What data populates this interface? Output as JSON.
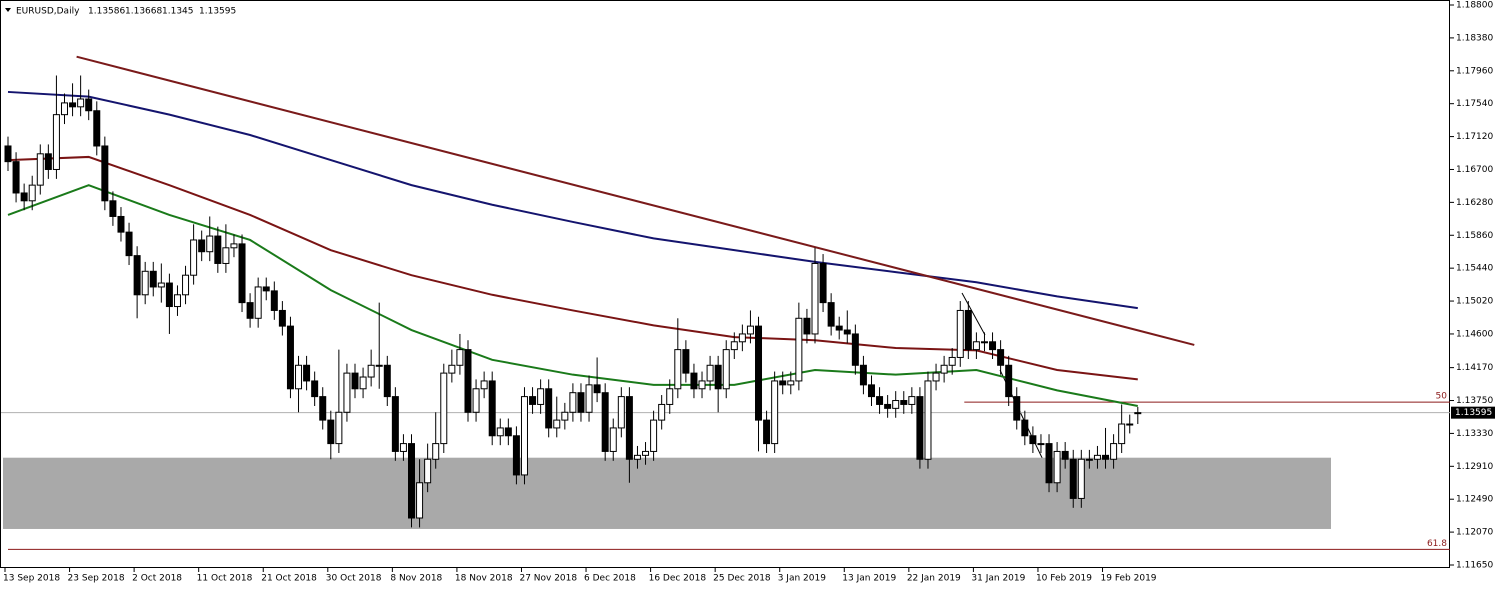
{
  "chart_data": {
    "type": "candlestick",
    "title": "EURUSD,Daily",
    "categories": [
      "13 Sep 2018",
      null,
      null,
      null,
      null,
      null,
      null,
      null,
      "23 Sep 2018",
      null,
      null,
      null,
      null,
      null,
      null,
      null,
      "2 Oct 2018",
      null,
      null,
      null,
      null,
      null,
      null,
      null,
      "11 Oct 2018",
      null,
      null,
      null,
      null,
      null,
      null,
      null,
      "21 Oct 2018",
      null,
      null,
      null,
      null,
      null,
      null,
      null,
      "30 Oct 2018",
      null,
      null,
      null,
      null,
      null,
      null,
      null,
      "8 Nov 2018",
      null,
      null,
      null,
      null,
      null,
      null,
      null,
      "18 Nov 2018",
      null,
      null,
      null,
      null,
      null,
      null,
      null,
      "27 Nov 2018",
      null,
      null,
      null,
      null,
      null,
      null,
      null,
      "6 Dec 2018",
      null,
      null,
      null,
      null,
      null,
      null,
      null,
      "16 Dec 2018",
      null,
      null,
      null,
      null,
      null,
      null,
      null,
      "25 Dec 2018",
      null,
      null,
      null,
      null,
      null,
      null,
      null,
      "3 Jan 2019",
      null,
      null,
      null,
      null,
      null,
      null,
      null,
      "13 Jan 2019",
      null,
      null,
      null,
      null,
      null,
      null,
      null,
      "22 Jan 2019",
      null,
      null,
      null,
      null,
      null,
      null,
      null,
      "31 Jan 2019",
      null,
      null,
      null,
      null,
      null,
      null,
      null,
      "10 Feb 2019",
      null,
      null,
      null,
      null,
      null,
      null,
      null,
      "19 Feb 2019",
      null,
      null,
      null,
      null
    ],
    "open": [
      1.17,
      1.168,
      1.164,
      1.163,
      1.165,
      1.169,
      1.167,
      1.174,
      1.1755,
      1.175,
      1.176,
      1.1745,
      1.17,
      1.163,
      1.161,
      1.159,
      1.156,
      1.151,
      1.154,
      1.152,
      1.1525,
      1.1495,
      1.151,
      1.1535,
      1.158,
      1.1565,
      1.1585,
      1.155,
      1.157,
      1.1575,
      1.15,
      1.148,
      1.152,
      1.1515,
      1.149,
      1.147,
      1.139,
      1.142,
      1.14,
      1.138,
      1.135,
      1.132,
      1.136,
      1.141,
      1.139,
      1.1405,
      1.142,
      1.142,
      1.138,
      1.131,
      1.132,
      1.1225,
      1.127,
      1.13,
      1.132,
      1.141,
      1.142,
      1.144,
      1.136,
      1.139,
      1.14,
      1.133,
      1.134,
      1.133,
      1.128,
      1.138,
      1.137,
      1.139,
      1.134,
      1.135,
      1.136,
      1.1385,
      1.136,
      1.1395,
      1.1385,
      1.131,
      1.134,
      1.138,
      1.13,
      1.1305,
      1.131,
      1.135,
      1.137,
      1.139,
      1.144,
      1.141,
      1.139,
      1.14,
      1.142,
      1.139,
      1.144,
      1.145,
      1.146,
      1.147,
      1.135,
      1.132,
      1.14,
      1.1395,
      1.14,
      1.148,
      1.146,
      1.155,
      1.15,
      1.147,
      1.1465,
      1.146,
      1.142,
      1.1395,
      1.138,
      1.137,
      1.1365,
      1.1375,
      1.137,
      1.138,
      1.13,
      1.14,
      1.141,
      1.142,
      1.143,
      1.149,
      1.144,
      1.145,
      1.145,
      1.144,
      1.142,
      1.138,
      1.135,
      1.133,
      1.132,
      1.132,
      1.127,
      1.131,
      1.13,
      1.125,
      1.13,
      1.13,
      1.1305,
      1.13,
      1.132,
      1.1345,
      1.13586
    ],
    "high": [
      1.1712,
      1.1692,
      1.1652,
      1.1662,
      1.1702,
      1.1702,
      1.179,
      1.1767,
      1.178,
      1.179,
      1.1772,
      1.1757,
      1.1712,
      1.1642,
      1.1622,
      1.1602,
      1.1572,
      1.1552,
      1.1552,
      1.155,
      1.1537,
      1.1522,
      1.1547,
      1.16,
      1.1592,
      1.161,
      1.1597,
      1.16,
      1.1587,
      1.1587,
      1.1512,
      1.1532,
      1.1532,
      1.1527,
      1.1502,
      1.1482,
      1.1432,
      1.1432,
      1.1412,
      1.1392,
      1.1362,
      1.144,
      1.1422,
      1.1422,
      1.1417,
      1.144,
      1.15,
      1.1432,
      1.1392,
      1.1332,
      1.1332,
      1.13,
      1.132,
      1.136,
      1.1422,
      1.144,
      1.146,
      1.1452,
      1.1402,
      1.1412,
      1.1412,
      1.1352,
      1.1352,
      1.1342,
      1.1392,
      1.1392,
      1.1402,
      1.1402,
      1.138,
      1.1372,
      1.1397,
      1.1397,
      1.1407,
      1.143,
      1.1397,
      1.1352,
      1.1392,
      1.1392,
      1.1317,
      1.1322,
      1.1362,
      1.1382,
      1.1402,
      1.148,
      1.1452,
      1.1422,
      1.1412,
      1.1432,
      1.1432,
      1.1452,
      1.1462,
      1.1472,
      1.149,
      1.1482,
      1.1362,
      1.1412,
      1.1412,
      1.1412,
      1.15,
      1.1492,
      1.157,
      1.1562,
      1.1512,
      1.1482,
      1.149,
      1.1472,
      1.1432,
      1.1407,
      1.1392,
      1.1382,
      1.1387,
      1.1387,
      1.1392,
      1.1392,
      1.1412,
      1.1422,
      1.1432,
      1.1442,
      1.1502,
      1.1502,
      1.1462,
      1.1462,
      1.1462,
      1.1452,
      1.1432,
      1.1392,
      1.1362,
      1.1342,
      1.1332,
      1.1332,
      1.1322,
      1.1322,
      1.1312,
      1.1312,
      1.1312,
      1.1317,
      1.134,
      1.1332,
      1.137,
      1.1357,
      1.13668
    ],
    "low": [
      1.1668,
      1.1628,
      1.1618,
      1.1618,
      1.1638,
      1.1658,
      1.1658,
      1.1728,
      1.1738,
      1.1738,
      1.1733,
      1.1688,
      1.1618,
      1.1598,
      1.1578,
      1.1548,
      1.148,
      1.1498,
      1.1508,
      1.15,
      1.146,
      1.1483,
      1.1498,
      1.1523,
      1.1553,
      1.1553,
      1.1538,
      1.1538,
      1.1558,
      1.1488,
      1.1468,
      1.1468,
      1.1503,
      1.1478,
      1.1458,
      1.1378,
      1.136,
      1.1388,
      1.1368,
      1.1338,
      1.13,
      1.1308,
      1.1348,
      1.1378,
      1.1378,
      1.1393,
      1.139,
      1.1368,
      1.1298,
      1.1298,
      1.1213,
      1.1213,
      1.1258,
      1.1288,
      1.1308,
      1.1398,
      1.1408,
      1.1348,
      1.1348,
      1.1378,
      1.1318,
      1.1318,
      1.1318,
      1.1268,
      1.1268,
      1.1358,
      1.1358,
      1.1328,
      1.1328,
      1.1338,
      1.1348,
      1.1348,
      1.1348,
      1.1373,
      1.1298,
      1.1298,
      1.1328,
      1.127,
      1.1288,
      1.1293,
      1.1298,
      1.1338,
      1.1358,
      1.1378,
      1.1398,
      1.1378,
      1.1378,
      1.1388,
      1.136,
      1.1378,
      1.1428,
      1.1438,
      1.1448,
      1.131,
      1.1308,
      1.1308,
      1.1383,
      1.1383,
      1.1388,
      1.1448,
      1.1448,
      1.1488,
      1.1458,
      1.1453,
      1.1448,
      1.1408,
      1.1383,
      1.1368,
      1.1358,
      1.1353,
      1.1353,
      1.1358,
      1.1358,
      1.1288,
      1.1288,
      1.1388,
      1.1398,
      1.1408,
      1.1418,
      1.1428,
      1.1428,
      1.1438,
      1.1428,
      1.1408,
      1.1368,
      1.1338,
      1.1318,
      1.1308,
      1.1308,
      1.1258,
      1.1258,
      1.1288,
      1.1238,
      1.1238,
      1.1288,
      1.1288,
      1.1288,
      1.1288,
      1.1308,
      1.1333,
      1.1345
    ],
    "close": [
      1.168,
      1.164,
      1.163,
      1.165,
      1.169,
      1.167,
      1.174,
      1.1755,
      1.175,
      1.176,
      1.1745,
      1.17,
      1.163,
      1.161,
      1.159,
      1.156,
      1.151,
      1.154,
      1.152,
      1.1525,
      1.1495,
      1.151,
      1.1535,
      1.158,
      1.1565,
      1.1585,
      1.155,
      1.157,
      1.1575,
      1.15,
      1.148,
      1.152,
      1.1515,
      1.149,
      1.147,
      1.139,
      1.142,
      1.14,
      1.138,
      1.135,
      1.132,
      1.136,
      1.141,
      1.139,
      1.1405,
      1.142,
      1.142,
      1.138,
      1.131,
      1.132,
      1.1225,
      1.127,
      1.13,
      1.132,
      1.141,
      1.142,
      1.144,
      1.136,
      1.139,
      1.14,
      1.133,
      1.134,
      1.133,
      1.128,
      1.138,
      1.137,
      1.139,
      1.134,
      1.135,
      1.136,
      1.1385,
      1.136,
      1.1395,
      1.1385,
      1.131,
      1.134,
      1.138,
      1.13,
      1.1305,
      1.131,
      1.135,
      1.137,
      1.139,
      1.144,
      1.141,
      1.139,
      1.14,
      1.142,
      1.139,
      1.144,
      1.145,
      1.146,
      1.147,
      1.135,
      1.132,
      1.14,
      1.1395,
      1.14,
      1.148,
      1.146,
      1.155,
      1.15,
      1.147,
      1.1465,
      1.146,
      1.142,
      1.1395,
      1.138,
      1.137,
      1.1365,
      1.1375,
      1.137,
      1.138,
      1.13,
      1.14,
      1.141,
      1.142,
      1.143,
      1.149,
      1.144,
      1.145,
      1.145,
      1.144,
      1.142,
      1.138,
      1.135,
      1.133,
      1.132,
      1.132,
      1.127,
      1.131,
      1.13,
      1.125,
      1.13,
      1.13,
      1.1305,
      1.13,
      1.132,
      1.1345,
      1.1345,
      1.13595
    ],
    "up_color": "#ffffff",
    "down_color": "#000000",
    "lines": [
      {
        "color": "#1a7a1a",
        "x": [
          0,
          10,
          20,
          30,
          40,
          50,
          60,
          70,
          80,
          90,
          100,
          110,
          120,
          130,
          140
        ],
        "values": [
          1.1612,
          1.165,
          1.1612,
          1.158,
          1.1516,
          1.1465,
          1.1427,
          1.1408,
          1.1395,
          1.1395,
          1.1414,
          1.1408,
          1.1414,
          1.1388,
          1.1368
        ]
      },
      {
        "color": "#7a1414",
        "x": [
          0,
          10,
          20,
          30,
          40,
          50,
          60,
          70,
          80,
          90,
          100,
          110,
          120,
          130,
          140
        ],
        "values": [
          1.1682,
          1.1686,
          1.165,
          1.1612,
          1.1567,
          1.1535,
          1.151,
          1.149,
          1.1471,
          1.1456,
          1.1452,
          1.1442,
          1.1439,
          1.1414,
          1.1402
        ]
      },
      {
        "color": "#14146e",
        "x": [
          0,
          10,
          20,
          30,
          40,
          50,
          60,
          70,
          80,
          90,
          100,
          110,
          120,
          130,
          140
        ],
        "values": [
          1.1769,
          1.1763,
          1.174,
          1.1714,
          1.1682,
          1.165,
          1.1625,
          1.1603,
          1.1582,
          1.1567,
          1.1552,
          1.1539,
          1.1526,
          1.1508,
          1.1493
        ]
      },
      {
        "color": "#7a1a1a",
        "x": [
          8.5,
          147
        ],
        "values": [
          1.1814,
          1.1446
        ]
      }
    ],
    "levels": [
      {
        "label": "50",
        "value": 1.1373,
        "color": "#8b1a1a",
        "from": 118.5
      },
      {
        "label": "61.8",
        "value": 1.1185,
        "color": "#8b1a1a",
        "from": 0
      }
    ],
    "zone": [
      1.1211,
      1.1302
    ],
    "ylim": [
      1.1165,
      1.188
    ],
    "yticks": [
      {
        "value": 1.188,
        "label": "1.18800"
      },
      {
        "value": 1.1838,
        "label": "1.18380"
      },
      {
        "value": 1.1796,
        "label": "1.17960"
      },
      {
        "value": 1.1754,
        "label": "1.17540"
      },
      {
        "value": 1.1712,
        "label": "1.17120"
      },
      {
        "value": 1.167,
        "label": "1.16700"
      },
      {
        "value": 1.1628,
        "label": "1.16280"
      },
      {
        "value": 1.1586,
        "label": "1.15860"
      },
      {
        "value": 1.1544,
        "label": "1.15440"
      },
      {
        "value": 1.1502,
        "label": "1.15020"
      },
      {
        "value": 1.146,
        "label": "1.14600"
      },
      {
        "value": 1.1417,
        "label": "1.14170"
      },
      {
        "value": 1.1375,
        "label": "1.13750"
      },
      {
        "value": 1.1333,
        "label": "1.13330"
      },
      {
        "value": 1.1291,
        "label": "1.12910"
      },
      {
        "value": 1.1249,
        "label": "1.12490"
      },
      {
        "value": 1.1207,
        "label": "1.12070"
      },
      {
        "value": 1.1165,
        "label": "1.11650"
      }
    ]
  }
}
